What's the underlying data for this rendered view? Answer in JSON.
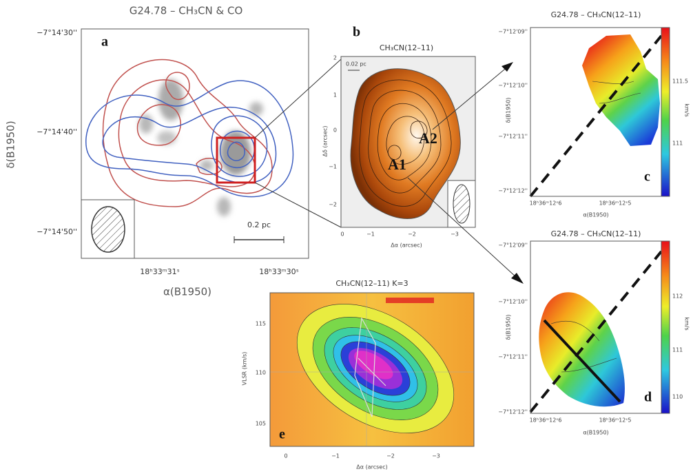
{
  "panel_a": {
    "title": "G24.78 – CH₃CN & CO",
    "label": "a",
    "yticks": [
      "−7°14'30''",
      "−7°14'40''",
      "−7°14'50''"
    ],
    "ylabel": "δ(B1950)",
    "xticks": [
      "18ʰ33ᵐ31ˢ",
      "18ʰ33ᵐ30ˢ"
    ],
    "xlabel": "α(B1950)",
    "scale_bar": "0.2 pc"
  },
  "panel_b": {
    "title": "CH₃CN(12–11)",
    "label": "b",
    "scale_bar": "0.02 pc",
    "yticks": [
      "2",
      "1",
      "0",
      "−1",
      "−2"
    ],
    "xticks": [
      "0",
      "−1",
      "−2",
      "−3"
    ],
    "ylabel": "Δδ (arcsec)",
    "xlabel": "Δα (arcsec)",
    "cores": [
      "A1",
      "A2"
    ]
  },
  "panel_c": {
    "title": "G24.78 – CH₃CN(12–11)",
    "label": "c",
    "yticks": [
      "−7°12'09''",
      "−7°12'10''",
      "−7°12'11''",
      "−7°12'12''"
    ],
    "xticks": [
      "18ʰ36ᵐ12ˢ6",
      "18ʰ36ᵐ12ˢ5"
    ],
    "ylabel": "δ(B1950)",
    "xlabel": "α(B1950)",
    "colorbar_ticks": [
      "111.5",
      "111"
    ],
    "colorbar_label": "km/s"
  },
  "panel_d": {
    "title": "G24.78 – CH₃CN(12–11)",
    "label": "d",
    "yticks": [
      "−7°12'09''",
      "−7°12'10''",
      "−7°12'11''",
      "−7°12'12''"
    ],
    "xticks": [
      "18ʰ36ᵐ12ˢ6",
      "18ʰ36ᵐ12ˢ5"
    ],
    "ylabel": "δ(B1950)",
    "xlabel": "α(B1950)",
    "colorbar_ticks": [
      "112",
      "111",
      "110"
    ],
    "colorbar_label": "km/s"
  },
  "panel_e": {
    "title": "CH₃CN(12–11) K=3",
    "label": "e",
    "yticks": [
      "115",
      "110",
      "105"
    ],
    "xticks": [
      "0",
      "−1",
      "−2",
      "−3"
    ],
    "ylabel": "VLSR (km/s)",
    "xlabel": "Δα (arcsec)"
  }
}
